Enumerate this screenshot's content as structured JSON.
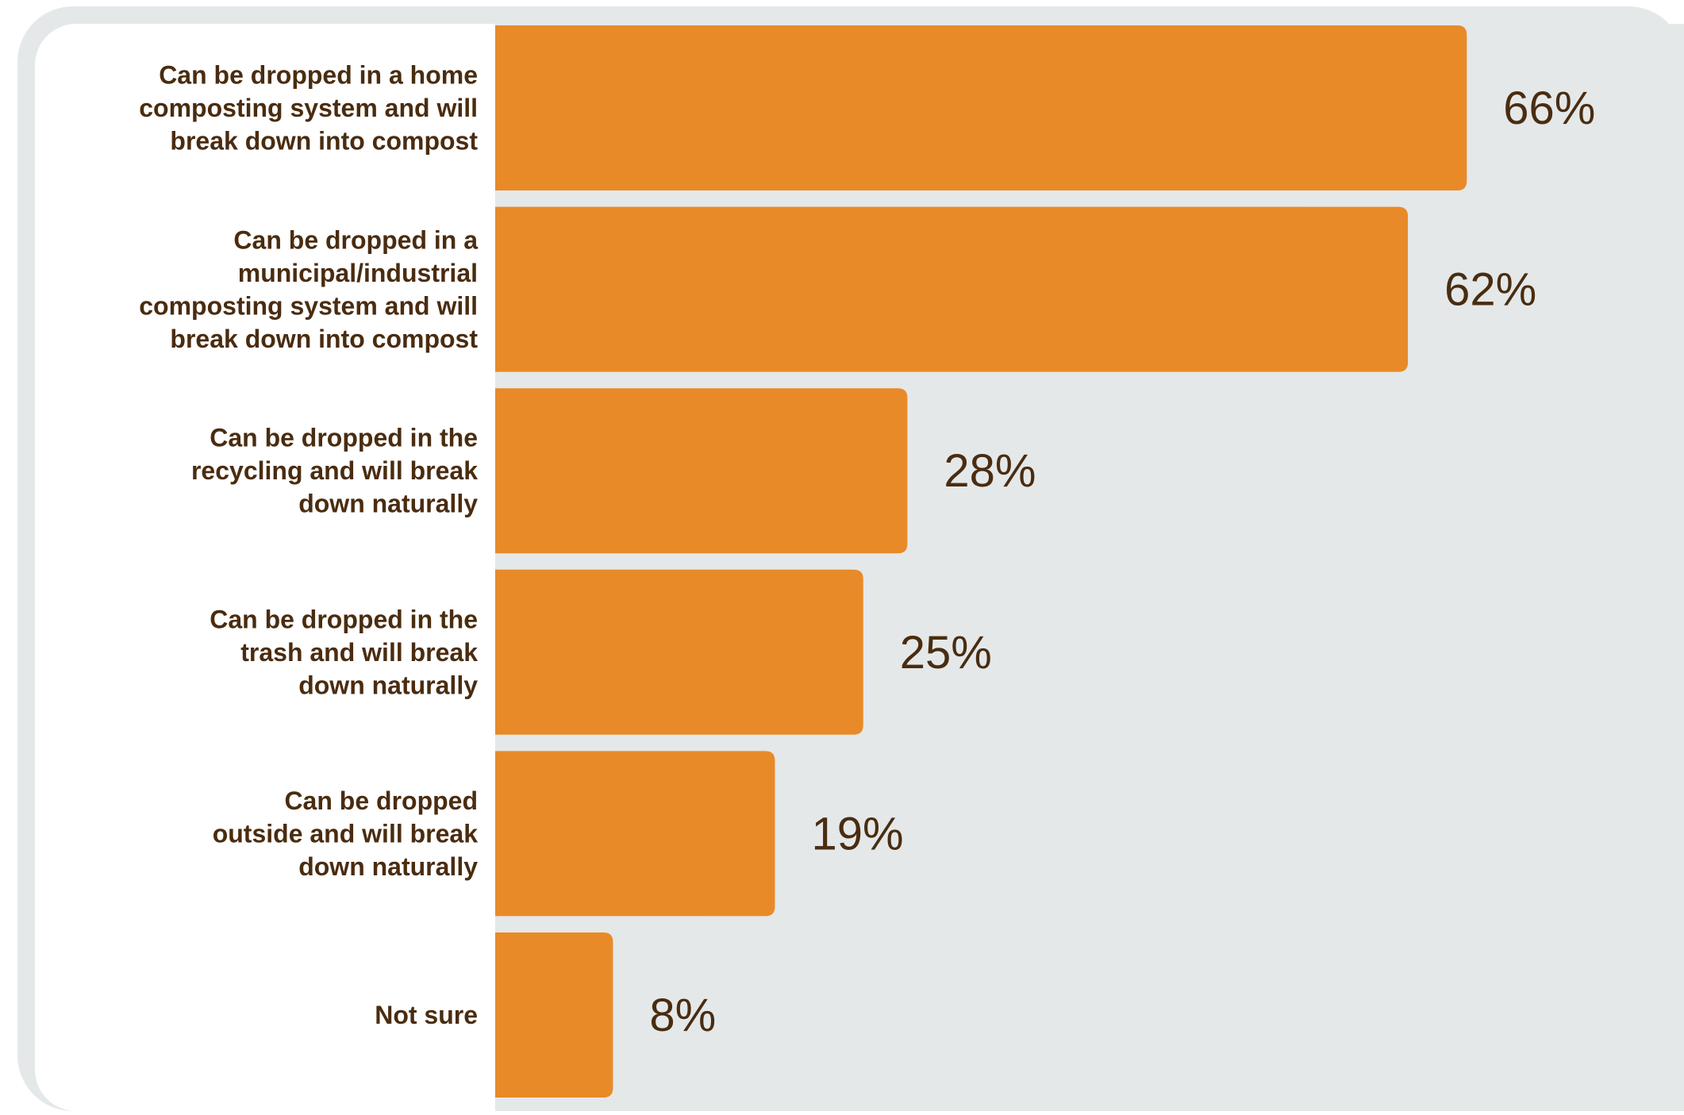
{
  "colors": {
    "frame": "#e4e8e9",
    "panel": "#ffffff",
    "plot_bg": "#e4e8e9",
    "bar": "#e98a28",
    "text": "#4a2c10"
  },
  "chart_data": {
    "type": "bar",
    "orientation": "horizontal",
    "categories": [
      [
        "Can be dropped in a home",
        "composting system and will",
        "break down into compost"
      ],
      [
        "Can be  dropped in a",
        "municipal/industrial",
        "composting system and will",
        "break down into compost"
      ],
      [
        "Can be dropped in the",
        "recycling and will break",
        "down naturally"
      ],
      [
        "Can be dropped in the",
        "trash and will break",
        "down naturally"
      ],
      [
        "Can be dropped",
        "outside and will break",
        "down naturally"
      ],
      [
        "Not sure"
      ]
    ],
    "values": [
      66,
      62,
      28,
      25,
      19,
      8
    ],
    "value_labels": [
      "66%",
      "62%",
      "28%",
      "25%",
      "19%",
      "8%"
    ],
    "xlim": [
      0,
      100
    ],
    "grid": false,
    "legend": "none"
  }
}
